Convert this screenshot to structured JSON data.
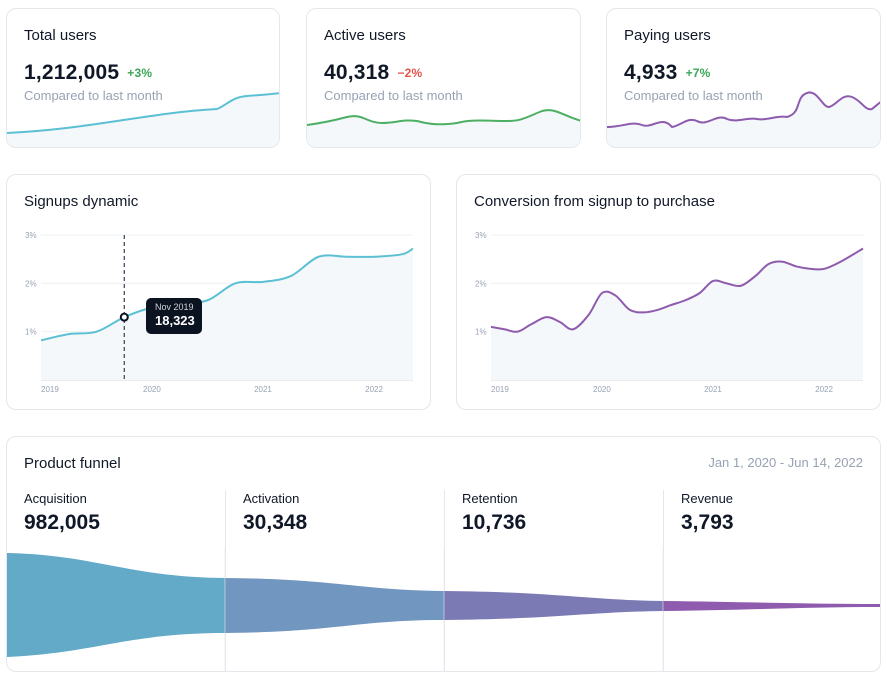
{
  "stats": [
    {
      "title": "Total users",
      "value": "1,212,005",
      "delta": "+3%",
      "delta_color": "#3aa757",
      "subtitle": "Compared to last month",
      "line_color": "#5bc0d4"
    },
    {
      "title": "Active users",
      "value": "40,318",
      "delta": "−2%",
      "delta_color": "#e5534b",
      "subtitle": "Compared to last month",
      "line_color": "#4caf64"
    },
    {
      "title": "Paying users",
      "value": "4,933",
      "delta": "+7%",
      "delta_color": "#3aa757",
      "subtitle": "Compared to last month",
      "line_color": "#8e5bae"
    }
  ],
  "signups": {
    "title": "Signups dynamic",
    "tooltip_date": "Nov 2019",
    "tooltip_value": "18,323",
    "chart_data": {
      "type": "line",
      "title": "Signups dynamic",
      "y_ticks": [
        "3%",
        "2%",
        "1%"
      ],
      "x_ticks": [
        "2019",
        "2020",
        "2021",
        "2022"
      ],
      "ylim": [
        0,
        3
      ],
      "x": [
        2019.0,
        2019.25,
        2019.5,
        2019.75,
        2020.0,
        2020.25,
        2020.5,
        2020.75,
        2021.0,
        2021.25,
        2021.5,
        2021.75,
        2022.0,
        2022.25,
        2022.35
      ],
      "values": [
        0.82,
        0.95,
        1.0,
        1.3,
        1.5,
        1.58,
        1.65,
        2.0,
        2.03,
        2.15,
        2.55,
        2.55,
        2.55,
        2.6,
        2.72
      ],
      "line_color": "#5bc0d4"
    }
  },
  "conversion": {
    "title": "Conversion from signup to purchase",
    "chart_data": {
      "type": "line",
      "title": "Conversion from signup to purchase",
      "y_ticks": [
        "3%",
        "2%",
        "1%"
      ],
      "x_ticks": [
        "2019",
        "2020",
        "2021",
        "2022"
      ],
      "ylim": [
        0,
        3
      ],
      "x": [
        2019.0,
        2019.12,
        2019.24,
        2019.36,
        2019.5,
        2019.62,
        2019.74,
        2019.88,
        2020.0,
        2020.12,
        2020.25,
        2020.38,
        2020.5,
        2020.62,
        2020.75,
        2020.88,
        2021.0,
        2021.12,
        2021.25,
        2021.38,
        2021.5,
        2021.62,
        2021.75,
        2021.88,
        2022.0,
        2022.15,
        2022.35
      ],
      "values": [
        1.1,
        1.05,
        1.0,
        1.15,
        1.3,
        1.2,
        1.05,
        1.35,
        1.8,
        1.75,
        1.45,
        1.4,
        1.45,
        1.55,
        1.65,
        1.8,
        2.05,
        2.0,
        1.95,
        2.15,
        2.4,
        2.45,
        2.35,
        2.3,
        2.3,
        2.45,
        2.72
      ],
      "line_color": "#8e5bae"
    }
  },
  "funnel": {
    "title": "Product funnel",
    "date_range": "Jan 1, 2020 - Jun 14, 2022",
    "stages": [
      {
        "label": "Acquisition",
        "value": "982,005",
        "color": "#63a9c8"
      },
      {
        "label": "Activation",
        "value": "30,348",
        "color": "#7196c0"
      },
      {
        "label": "Retention",
        "value": "10,736",
        "color": "#7c7ab5"
      },
      {
        "label": "Revenue",
        "value": "3,793",
        "color": "#8e5bae"
      }
    ]
  }
}
